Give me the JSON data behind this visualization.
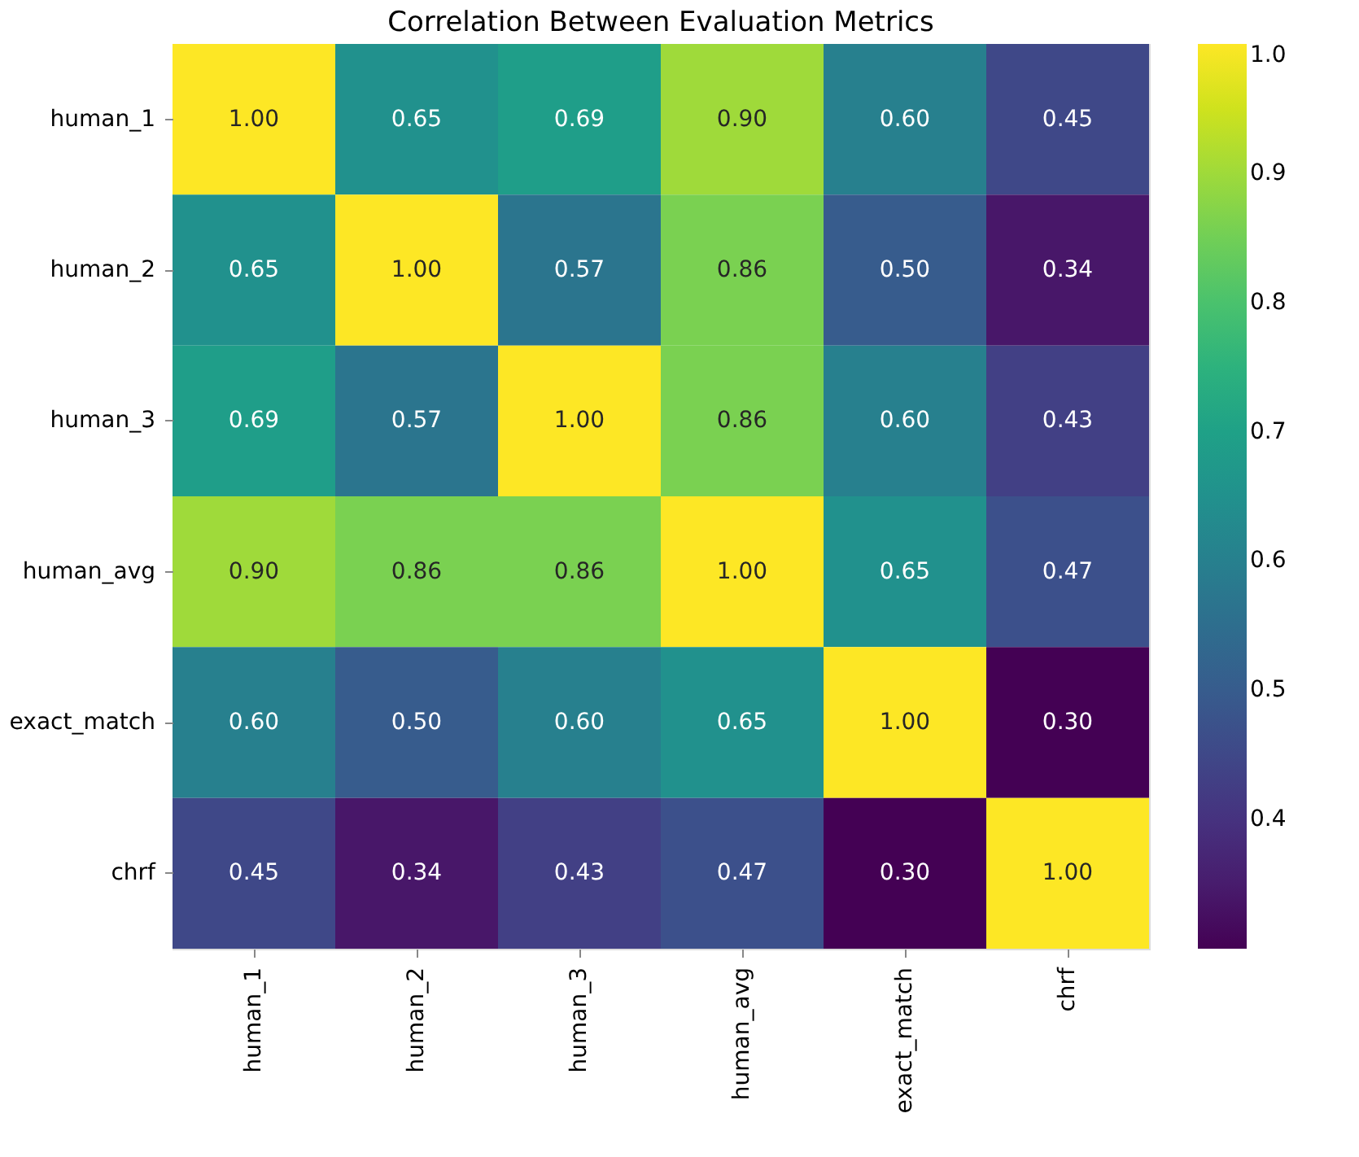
{
  "chart_data": {
    "type": "heatmap",
    "title": "Correlation Between Evaluation Metrics",
    "categories": [
      "human_1",
      "human_2",
      "human_3",
      "human_avg",
      "exact_match",
      "chrf"
    ],
    "y_categories": [
      "human_1",
      "human_2",
      "human_3",
      "human_avg",
      "exact_match",
      "chrf"
    ],
    "cells": [
      [
        1.0,
        0.65,
        0.69,
        0.9,
        0.6,
        0.45
      ],
      [
        0.65,
        1.0,
        0.57,
        0.86,
        0.5,
        0.34
      ],
      [
        0.69,
        0.57,
        1.0,
        0.86,
        0.6,
        0.43
      ],
      [
        0.9,
        0.86,
        0.86,
        1.0,
        0.65,
        0.47
      ],
      [
        0.6,
        0.5,
        0.6,
        0.65,
        1.0,
        0.3
      ],
      [
        0.45,
        0.34,
        0.43,
        0.47,
        0.3,
        1.0
      ]
    ],
    "cell_labels": [
      [
        "1.00",
        "0.65",
        "0.69",
        "0.90",
        "0.60",
        "0.45"
      ],
      [
        "0.65",
        "1.00",
        "0.57",
        "0.86",
        "0.50",
        "0.34"
      ],
      [
        "0.69",
        "0.57",
        "1.00",
        "0.86",
        "0.60",
        "0.43"
      ],
      [
        "0.90",
        "0.86",
        "0.86",
        "1.00",
        "0.65",
        "0.47"
      ],
      [
        "0.60",
        "0.50",
        "0.60",
        "0.65",
        "1.00",
        "0.30"
      ],
      [
        "0.45",
        "0.34",
        "0.43",
        "0.47",
        "0.30",
        "1.00"
      ]
    ],
    "clim": [
      0.3,
      1.0
    ],
    "cticks": [
      0.4,
      0.5,
      0.6,
      0.7,
      0.8,
      0.9,
      {
        "value": 1.0,
        "label": "1.0"
      }
    ],
    "data_labels": true
  }
}
